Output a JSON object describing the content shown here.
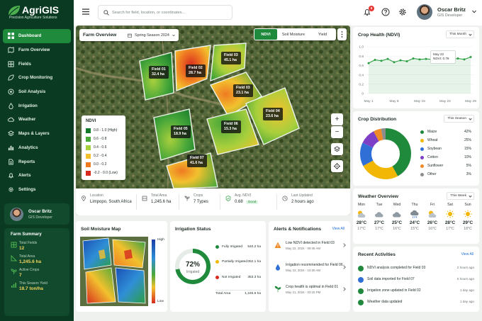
{
  "brand": {
    "name": "AgriGIS",
    "tagline": "Precision Agriculture Solutions"
  },
  "sidebar": {
    "items": [
      {
        "label": "Dashboard",
        "icon": "grid-icon",
        "active": true
      },
      {
        "label": "Farm Overview",
        "icon": "map-icon"
      },
      {
        "label": "Fields",
        "icon": "fields-icon"
      },
      {
        "label": "Crop Monitoring",
        "icon": "leaf-icon"
      },
      {
        "label": "Soil Analysis",
        "icon": "soil-icon"
      },
      {
        "label": "Irrigation",
        "icon": "droplet-icon"
      },
      {
        "label": "Weather",
        "icon": "cloud-icon"
      },
      {
        "label": "Maps & Layers",
        "icon": "layers-icon"
      },
      {
        "label": "Analytics",
        "icon": "bar-chart-icon"
      },
      {
        "label": "Reports",
        "icon": "document-icon"
      },
      {
        "label": "Alerts",
        "icon": "bell-icon"
      },
      {
        "label": "Settings",
        "icon": "gear-icon"
      }
    ],
    "user": {
      "name": "Oscar Britz",
      "role": "GIS Developer"
    },
    "farm_summary": {
      "title": "Farm Summary",
      "items": [
        {
          "label": "Total Fields",
          "value": "12"
        },
        {
          "label": "Total Area",
          "value": "1,245.6 ha"
        },
        {
          "label": "Active Crops",
          "value": "7"
        },
        {
          "label": "This Season Yield",
          "value": "18.7 ton/ha"
        }
      ]
    }
  },
  "topbar": {
    "search_placeholder": "Search for field, location, or coordinates...",
    "notification_count": "5",
    "user_name": "Oscar Britz",
    "user_role": "GIS Developer"
  },
  "farm_map": {
    "title": "Farm Overview",
    "season": "Spring Season 2024",
    "layers": [
      "NDVI",
      "Soil Moisture",
      "Yield"
    ],
    "active_layer": "NDVI",
    "legend": {
      "title": "NDVI",
      "entries": [
        {
          "label": "0.8 - 1.0 (High)",
          "color": "#127a2a"
        },
        {
          "label": "0.6 - 0.8",
          "color": "#4aa83a"
        },
        {
          "label": "0.4 - 0.6",
          "color": "#a8cf3c"
        },
        {
          "label": "0.2 - 0.4",
          "color": "#f2c12e"
        },
        {
          "label": "0.0 - 0.2",
          "color": "#ef7a22"
        },
        {
          "label": "-0.2 - 0.0 (Low)",
          "color": "#d62a1e"
        }
      ]
    },
    "fields": [
      {
        "name": "Field 01",
        "area": "32.4 ha"
      },
      {
        "name": "Field 02",
        "area": "28.7 ha"
      },
      {
        "name": "Field 03",
        "area": "45.1 ha"
      },
      {
        "name": "Field 03",
        "area": "23.1 ha"
      },
      {
        "name": "Field 04",
        "area": "23.6 ha"
      },
      {
        "name": "Field 05",
        "area": "18.9 ha"
      },
      {
        "name": "Field 06",
        "area": "15.3 ha"
      },
      {
        "name": "Field 07",
        "area": "41.6 ha"
      }
    ],
    "info": {
      "location_label": "Location",
      "location": "Limpopo, South Africa",
      "area_label": "Total Area",
      "area": "1,245.6 ha",
      "crops_label": "Crops",
      "crops": "7 Types",
      "ndvi_label": "Avg. NDVI",
      "ndvi": "0.68",
      "ndvi_status": "Good",
      "updated_label": "Last Updated",
      "updated": "2 hours ago"
    }
  },
  "crop_health": {
    "title": "Crop Health (NDVI)",
    "period": "This Month",
    "tooltip_date": "May 22",
    "tooltip_value": "NDVI: 0.78"
  },
  "chart_data": {
    "type": "line",
    "title": "Crop Health (NDVI)",
    "x_ticks": [
      "May 1",
      "May 8",
      "May 15",
      "May 22",
      "May 29"
    ],
    "values": [
      0.65,
      0.72,
      0.7,
      0.74,
      0.67,
      0.71,
      0.69,
      0.75,
      0.73,
      0.74,
      0.73,
      0.78,
      0.74,
      0.73,
      0.75,
      0.73,
      0.78
    ],
    "ylim": [
      0,
      1.0
    ],
    "y_ticks": [
      "0",
      "0.2",
      "0.4",
      "0.6",
      "0.8",
      "1.0"
    ],
    "color": "#2e9e44",
    "grid": true
  },
  "crop_distribution": {
    "title": "Crop Distribution",
    "period": "This Season",
    "items": [
      {
        "label": "Maize",
        "value": "42%",
        "pct": 42,
        "color": "#1f8a3c"
      },
      {
        "label": "Wheat",
        "value": "25%",
        "pct": 25,
        "color": "#f2b705"
      },
      {
        "label": "Soybean",
        "value": "15%",
        "pct": 15,
        "color": "#2f6fd6"
      },
      {
        "label": "Cotton",
        "value": "10%",
        "pct": 10,
        "color": "#7e3fc7"
      },
      {
        "label": "Sunflower",
        "value": "5%",
        "pct": 5,
        "color": "#f08a24"
      },
      {
        "label": "Other",
        "value": "3%",
        "pct": 3,
        "color": "#8c8c8c"
      }
    ]
  },
  "weather": {
    "title": "Weather Overview",
    "period": "This Week",
    "days": [
      {
        "day": "Mon",
        "hi": "28°C",
        "lo": "17°C",
        "icon": "cloud-sun-icon"
      },
      {
        "day": "Tue",
        "hi": "27°C",
        "lo": "17°C",
        "icon": "cloud-icon"
      },
      {
        "day": "Wed",
        "hi": "25°C",
        "lo": "16°C",
        "icon": "cloud-icon"
      },
      {
        "day": "Thu",
        "hi": "24°C",
        "lo": "15°C",
        "icon": "rain-icon"
      },
      {
        "day": "Fri",
        "hi": "26°C",
        "lo": "16°C",
        "icon": "cloud-sun-icon"
      },
      {
        "day": "Sat",
        "hi": "28°C",
        "lo": "17°C",
        "icon": "sun-icon"
      },
      {
        "day": "Sun",
        "hi": "29°C",
        "lo": "18°C",
        "icon": "sun-icon"
      }
    ]
  },
  "soil_moisture": {
    "title": "Soil Moisture Map",
    "high": "High",
    "low": "Low"
  },
  "irrigation": {
    "title": "Irrigation Status",
    "percent": "72%",
    "percent_value": 72,
    "center_label": "Irrigated",
    "rows": [
      {
        "label": "Fully Irrigated",
        "value": "540.2 ha",
        "color": "#1f8a3c"
      },
      {
        "label": "Partially Irrigated",
        "value": "352.1 ha",
        "color": "#f2b705"
      },
      {
        "label": "Not Irrigated",
        "value": "353.3 ha",
        "color": "#d62a1e"
      }
    ],
    "total_label": "Total Area",
    "total": "1,245.6 ha"
  },
  "alerts": {
    "title": "Alerts & Notifications",
    "view_all": "View All",
    "items": [
      {
        "text": "Low NDVI detected in Field 03",
        "date": "May 22, 2024 - 09:45 AM",
        "icon": "warning-icon"
      },
      {
        "text": "Irrigation recommended for Field 06",
        "date": "May 22, 2024 - 10:30 AM",
        "icon": "droplet-icon"
      },
      {
        "text": "Crop health is optimal in Field 01",
        "date": "May 21, 2024 - 03:15 PM",
        "icon": "sprout-icon"
      }
    ]
  },
  "activities": {
    "title": "Recent Activities",
    "view_all": "View All",
    "items": [
      {
        "text": "NDVI analysis completed for Field 03",
        "time": "2 hours ago",
        "color": "#1f8a3c"
      },
      {
        "text": "Soil data imported for Field 07",
        "time": "5 hours ago",
        "color": "#2f6fd6"
      },
      {
        "text": "Irrigation zone updated in Field 02",
        "time": "1 day ago",
        "color": "#1f8a3c"
      },
      {
        "text": "Weather data updated",
        "time": "1 day ago",
        "color": "#1f8a3c"
      }
    ]
  }
}
